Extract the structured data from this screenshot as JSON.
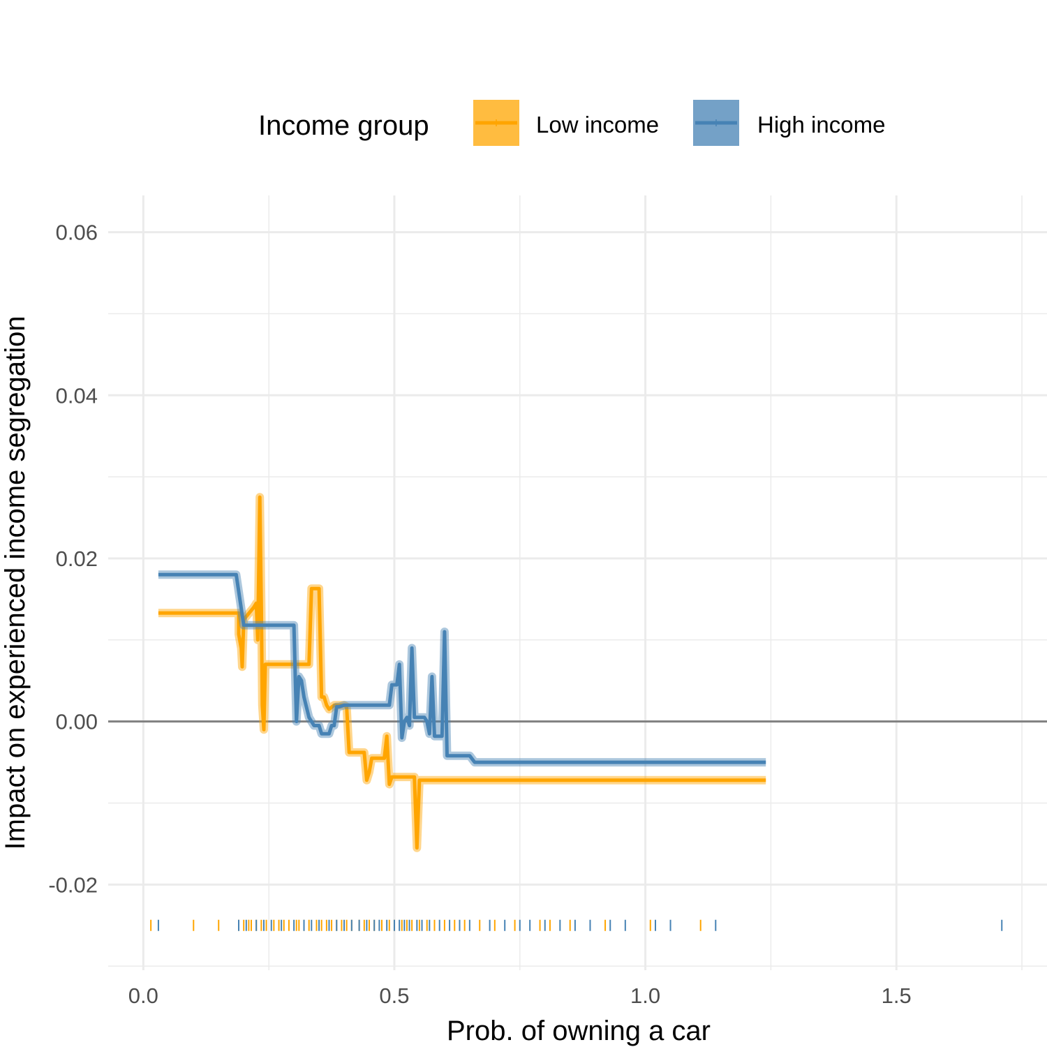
{
  "chart_data": {
    "type": "line",
    "title": "",
    "xlabel": "Prob. of owning a car",
    "ylabel": "Impact on experienced income segregation",
    "xlim": [
      -0.07,
      1.8
    ],
    "ylim": [
      -0.0305,
      0.0645
    ],
    "x_ticks": [
      0.0,
      0.5,
      1.0,
      1.5
    ],
    "x_tick_labels": [
      "0.0",
      "0.5",
      "1.0",
      "1.5"
    ],
    "y_ticks": [
      -0.02,
      0.0,
      0.02,
      0.04,
      0.06
    ],
    "y_tick_labels": [
      "-0.02",
      "0.00",
      "0.02",
      "0.04",
      "0.06"
    ],
    "reference_line_y": 0,
    "grid": true,
    "legend": {
      "title": "Income group",
      "position": "top",
      "entries": [
        "Low income",
        "High income"
      ]
    },
    "series": [
      {
        "name": "Low income",
        "color": "#FFA500",
        "rug_y": -0.025,
        "points": [
          [
            0.03,
            0.0133
          ],
          [
            0.19,
            0.0133
          ],
          [
            0.19,
            0.0107
          ],
          [
            0.195,
            0.009
          ],
          [
            0.197,
            0.0067
          ],
          [
            0.2,
            0.0125
          ],
          [
            0.22,
            0.014
          ],
          [
            0.225,
            0.0145
          ],
          [
            0.228,
            0.01
          ],
          [
            0.232,
            0.0275
          ],
          [
            0.235,
            0.0138
          ],
          [
            0.237,
            0.002
          ],
          [
            0.24,
            -0.001
          ],
          [
            0.243,
            0.007
          ],
          [
            0.33,
            0.007
          ],
          [
            0.335,
            0.0163
          ],
          [
            0.35,
            0.0163
          ],
          [
            0.355,
            0.003
          ],
          [
            0.36,
            0.003
          ],
          [
            0.365,
            0.002
          ],
          [
            0.37,
            0.0015
          ],
          [
            0.38,
            0.002
          ],
          [
            0.4,
            0.002
          ],
          [
            0.405,
            0.0018
          ],
          [
            0.41,
            -0.0038
          ],
          [
            0.44,
            -0.0038
          ],
          [
            0.445,
            -0.0072
          ],
          [
            0.45,
            -0.0062
          ],
          [
            0.455,
            -0.0045
          ],
          [
            0.48,
            -0.0045
          ],
          [
            0.485,
            -0.0018
          ],
          [
            0.49,
            -0.0077
          ],
          [
            0.495,
            -0.0068
          ],
          [
            0.54,
            -0.0068
          ],
          [
            0.545,
            -0.0155
          ],
          [
            0.55,
            -0.0072
          ],
          [
            1.24,
            -0.0072
          ]
        ],
        "rug_x": [
          0.015,
          0.1,
          0.15,
          0.19,
          0.2,
          0.21,
          0.215,
          0.225,
          0.235,
          0.245,
          0.26,
          0.27,
          0.28,
          0.29,
          0.305,
          0.31,
          0.32,
          0.33,
          0.345,
          0.355,
          0.365,
          0.375,
          0.385,
          0.395,
          0.405,
          0.415,
          0.43,
          0.44,
          0.45,
          0.46,
          0.475,
          0.49,
          0.5,
          0.515,
          0.525,
          0.535,
          0.55,
          0.565,
          0.58,
          0.6,
          0.62,
          0.64,
          0.67,
          0.7,
          0.74,
          0.79,
          0.81,
          0.85,
          0.92,
          1.01,
          1.11
        ]
      },
      {
        "name": "High income",
        "color": "#4682B4",
        "rug_y": -0.025,
        "points": [
          [
            0.03,
            0.018
          ],
          [
            0.185,
            0.018
          ],
          [
            0.2,
            0.0118
          ],
          [
            0.3,
            0.0118
          ],
          [
            0.305,
            0.0
          ],
          [
            0.31,
            0.0055
          ],
          [
            0.315,
            0.005
          ],
          [
            0.32,
            0.003
          ],
          [
            0.33,
            0.0005
          ],
          [
            0.34,
            -0.0005
          ],
          [
            0.35,
            -0.0005
          ],
          [
            0.355,
            -0.0015
          ],
          [
            0.37,
            -0.0015
          ],
          [
            0.375,
            -0.0005
          ],
          [
            0.38,
            -0.0005
          ],
          [
            0.385,
            0.0018
          ],
          [
            0.39,
            0.0018
          ],
          [
            0.4,
            0.002
          ],
          [
            0.49,
            0.002
          ],
          [
            0.495,
            0.0045
          ],
          [
            0.505,
            0.0045
          ],
          [
            0.51,
            0.007
          ],
          [
            0.515,
            -0.002
          ],
          [
            0.52,
            0.0
          ],
          [
            0.525,
            0.0005
          ],
          [
            0.53,
            -0.0005
          ],
          [
            0.535,
            0.009
          ],
          [
            0.54,
            0.0005
          ],
          [
            0.56,
            0.0005
          ],
          [
            0.565,
            0.0
          ],
          [
            0.57,
            -0.0015
          ],
          [
            0.575,
            0.0055
          ],
          [
            0.58,
            -0.0018
          ],
          [
            0.595,
            -0.0018
          ],
          [
            0.6,
            0.011
          ],
          [
            0.605,
            -0.0042
          ],
          [
            0.65,
            -0.0042
          ],
          [
            0.66,
            -0.005
          ],
          [
            1.24,
            -0.005
          ]
        ],
        "rug_x": [
          0.03,
          0.19,
          0.205,
          0.225,
          0.24,
          0.255,
          0.275,
          0.3,
          0.32,
          0.335,
          0.35,
          0.37,
          0.385,
          0.4,
          0.415,
          0.43,
          0.445,
          0.46,
          0.47,
          0.485,
          0.5,
          0.51,
          0.52,
          0.53,
          0.545,
          0.555,
          0.57,
          0.59,
          0.61,
          0.63,
          0.65,
          0.69,
          0.72,
          0.75,
          0.77,
          0.8,
          0.83,
          0.86,
          0.89,
          0.93,
          0.96,
          1.02,
          1.05,
          1.14,
          1.71
        ]
      }
    ]
  }
}
